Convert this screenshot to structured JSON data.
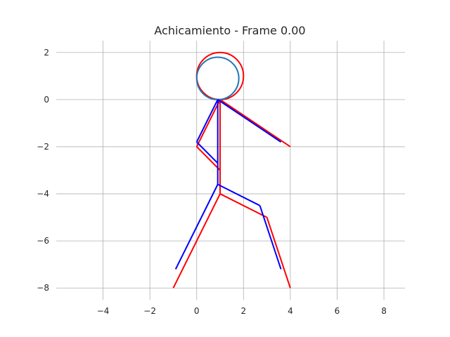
{
  "chart_data": {
    "type": "line",
    "title": "Achicamiento - Frame 0.00",
    "xlabel": "",
    "ylabel": "",
    "xlim": [
      -6.0,
      8.9
    ],
    "ylim": [
      -8.5,
      2.5
    ],
    "xticks": [
      -4,
      -2,
      0,
      2,
      4,
      6,
      8
    ],
    "yticks": [
      2,
      0,
      -2,
      -4,
      -6,
      -8
    ],
    "xtick_labels": [
      "−4",
      "−2",
      "0",
      "2",
      "4",
      "6",
      "8"
    ],
    "ytick_labels": [
      "2",
      "0",
      "−2",
      "−4",
      "−6",
      "−8"
    ],
    "grid": true,
    "series": [
      {
        "color": "#ff0000",
        "circle": {
          "cx": 1.0,
          "cy": 1.0,
          "r": 1.0
        },
        "segments": [
          [
            [
              1.0,
              0.0
            ],
            [
              1.0,
              -4.0
            ]
          ],
          [
            [
              1.0,
              0.0
            ],
            [
              4.0,
              -2.0
            ]
          ],
          [
            [
              1.0,
              0.0
            ],
            [
              0.0,
              -2.0
            ]
          ],
          [
            [
              0.0,
              -2.0
            ],
            [
              1.0,
              -3.0
            ]
          ],
          [
            [
              1.0,
              -4.0
            ],
            [
              -1.0,
              -8.0
            ]
          ],
          [
            [
              1.0,
              -4.0
            ],
            [
              3.0,
              -5.0
            ]
          ],
          [
            [
              3.0,
              -5.0
            ],
            [
              4.0,
              -8.0
            ]
          ]
        ]
      },
      {
        "color": "#0000ff",
        "head_color": "#1f77b4",
        "circle": {
          "cx": 0.9,
          "cy": 0.9,
          "r": 0.9
        },
        "segments": [
          [
            [
              0.9,
              0.0
            ],
            [
              0.9,
              -3.6
            ]
          ],
          [
            [
              0.9,
              0.0
            ],
            [
              3.6,
              -1.8
            ]
          ],
          [
            [
              0.9,
              0.0
            ],
            [
              0.0,
              -1.8
            ]
          ],
          [
            [
              0.0,
              -1.8
            ],
            [
              0.9,
              -2.7
            ]
          ],
          [
            [
              0.9,
              -3.6
            ],
            [
              -0.9,
              -7.2
            ]
          ],
          [
            [
              0.9,
              -3.6
            ],
            [
              2.7,
              -4.5
            ]
          ],
          [
            [
              2.7,
              -4.5
            ],
            [
              3.6,
              -7.2
            ]
          ]
        ]
      }
    ]
  }
}
